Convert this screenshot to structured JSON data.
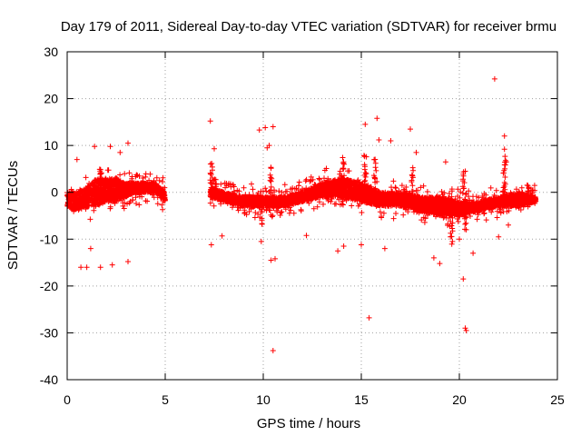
{
  "chart_data": {
    "type": "scatter",
    "title": "Day 179 of 2011, Sidereal Day-to-day VTEC variation (SDTVAR) for receiver brmu",
    "xlabel": "GPS time / hours",
    "ylabel": "SDTVAR / TECUs",
    "xlim": [
      0,
      25
    ],
    "ylim": [
      -40,
      30
    ],
    "xticks": [
      0,
      5,
      10,
      15,
      20,
      25
    ],
    "yticks": [
      -40,
      -30,
      -20,
      -10,
      0,
      10,
      20,
      30
    ],
    "xtick_labels": [
      "0",
      "5",
      "10",
      "15",
      "20",
      "25"
    ],
    "ytick_labels": [
      "-40",
      "-30",
      "-20",
      "-10",
      "0",
      "10",
      "20",
      "30"
    ],
    "grid": true,
    "marker": "+",
    "series": [
      {
        "name": "brmu",
        "color": "#ff0000",
        "segments": [
          [
            0,
            5.0
          ],
          [
            7.3,
            23.9
          ]
        ],
        "band_profile": [
          [
            0.0,
            -3,
            0
          ],
          [
            0.5,
            -4,
            0
          ],
          [
            1.0,
            -3,
            1
          ],
          [
            1.5,
            -3,
            3
          ],
          [
            2.0,
            -2,
            3
          ],
          [
            2.5,
            -2,
            3
          ],
          [
            3.0,
            -1,
            2
          ],
          [
            3.5,
            0,
            2
          ],
          [
            4.0,
            0,
            2
          ],
          [
            4.5,
            0,
            2
          ],
          [
            5.0,
            -2,
            0
          ],
          [
            7.3,
            -1,
            1
          ],
          [
            8.0,
            -2,
            0
          ],
          [
            9.0,
            -3,
            -1
          ],
          [
            10.0,
            -3,
            -1
          ],
          [
            11.0,
            -3,
            -1
          ],
          [
            12.0,
            -2,
            0
          ],
          [
            13.0,
            -1,
            2
          ],
          [
            14.0,
            -1,
            3
          ],
          [
            15.0,
            -2,
            2
          ],
          [
            16.0,
            -3,
            0
          ],
          [
            17.0,
            -3,
            0
          ],
          [
            18.0,
            -4,
            -1
          ],
          [
            19.0,
            -5,
            -1
          ],
          [
            20.0,
            -5,
            -2
          ],
          [
            21.0,
            -4,
            -2
          ],
          [
            22.0,
            -3,
            -1
          ],
          [
            23.0,
            -3,
            0
          ],
          [
            23.9,
            -2,
            -1
          ]
        ],
        "outliers": [
          [
            0.5,
            7
          ],
          [
            0.7,
            -16
          ],
          [
            1.0,
            -16
          ],
          [
            1.2,
            -12
          ],
          [
            1.4,
            9.8
          ],
          [
            1.7,
            -16
          ],
          [
            2.2,
            9.8
          ],
          [
            2.3,
            -15.5
          ],
          [
            2.7,
            8.5
          ],
          [
            3.1,
            10.5
          ],
          [
            3.1,
            -14.8
          ],
          [
            7.3,
            15.2
          ],
          [
            7.35,
            -11.2
          ],
          [
            7.5,
            9.3
          ],
          [
            7.9,
            -9.3
          ],
          [
            9.8,
            13.3
          ],
          [
            10.1,
            13.8
          ],
          [
            10.5,
            14
          ],
          [
            10.3,
            10
          ],
          [
            10.2,
            9.5
          ],
          [
            10.4,
            -14.5
          ],
          [
            10.6,
            -14.2
          ],
          [
            10.5,
            -33.8
          ],
          [
            9.9,
            -10.5
          ],
          [
            12.2,
            -9.2
          ],
          [
            13.8,
            -12.5
          ],
          [
            14.1,
            -11.5
          ],
          [
            15.0,
            -11.2
          ],
          [
            15.2,
            14.5
          ],
          [
            15.8,
            15.8
          ],
          [
            15.4,
            -26.8
          ],
          [
            15.9,
            11.2
          ],
          [
            16.2,
            -12
          ],
          [
            16.5,
            11
          ],
          [
            17.5,
            13.5
          ],
          [
            17.8,
            8.5
          ],
          [
            18.7,
            -14
          ],
          [
            19.0,
            -15.2
          ],
          [
            19.3,
            6.5
          ],
          [
            20.0,
            -10
          ],
          [
            20.2,
            -18.5
          ],
          [
            20.3,
            -29
          ],
          [
            20.35,
            -29.5
          ],
          [
            20.3,
            4.5
          ],
          [
            20.7,
            -13
          ],
          [
            21.8,
            24.2
          ],
          [
            22.3,
            12
          ],
          [
            22.3,
            9.2
          ],
          [
            22.4,
            6.5
          ],
          [
            22.0,
            -9.5
          ],
          [
            22.5,
            -7
          ]
        ]
      }
    ]
  }
}
